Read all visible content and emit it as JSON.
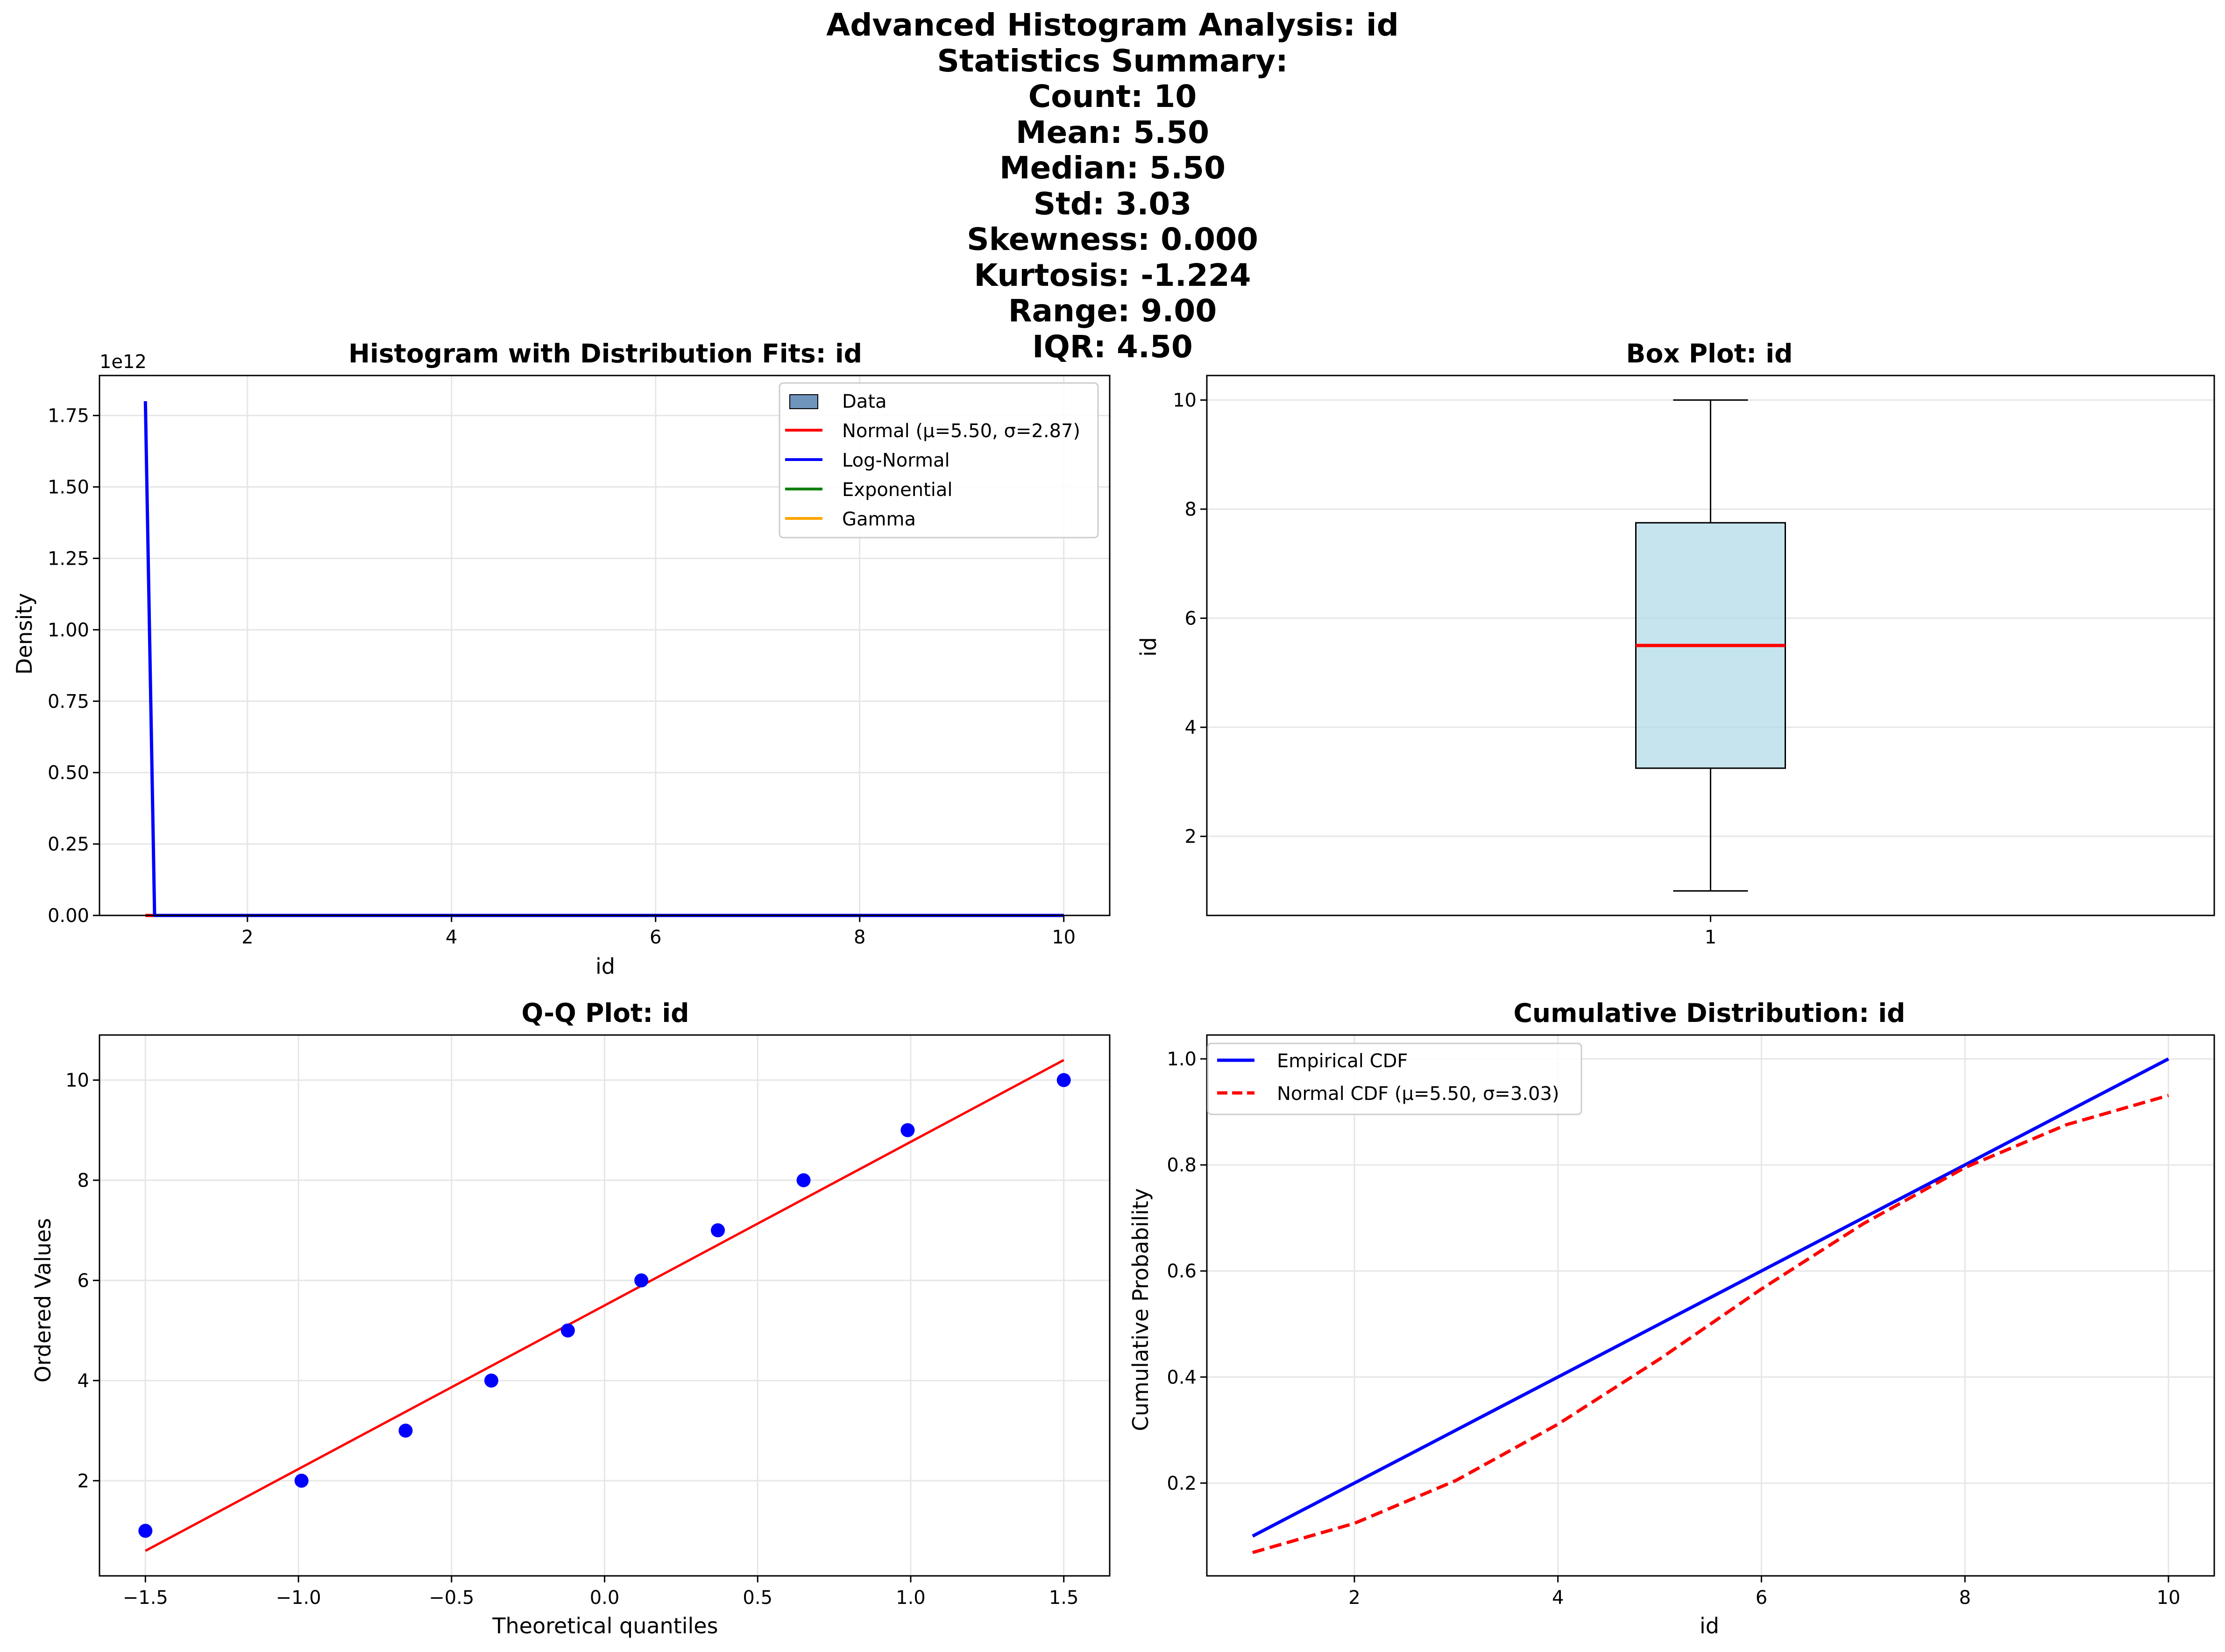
{
  "figure": {
    "suptitle_lines": [
      "Advanced Histogram Analysis: id",
      "Statistics Summary:",
      "Count: 10",
      "Mean: 5.50",
      "Median: 5.50",
      "Std: 3.03",
      "Skewness: 0.000",
      "Kurtosis: -1.224",
      "Range: 9.00",
      "IQR: 4.50"
    ]
  },
  "colors": {
    "grid": "#e6e6e6",
    "normal": "#ff0000",
    "lognormal": "#0000ff",
    "exponential": "#008000",
    "gamma": "#ffa500",
    "data": "#6f95bd",
    "box_fill": "#add8e6",
    "median": "#ff0000",
    "qq_point": "#0000ff",
    "qq_line": "#ff0000",
    "ecdf": "#0000ff",
    "ncdf": "#ff0000"
  },
  "chart_data": [
    {
      "type": "line",
      "title": "Histogram with Distribution Fits: id",
      "xlabel": "id",
      "ylabel": "Density",
      "offset_text": "1e12",
      "xlim": [
        0.55,
        10.45
      ],
      "ylim": [
        0,
        1.89
      ],
      "xticks": [
        2,
        4,
        6,
        8,
        10
      ],
      "yticks": [
        0.0,
        0.25,
        0.5,
        0.75,
        1.0,
        1.25,
        1.5,
        1.75
      ],
      "ytick_labels": [
        "0.00",
        "0.25",
        "0.50",
        "0.75",
        "1.00",
        "1.25",
        "1.50",
        "1.75"
      ],
      "grid": true,
      "legend_position": "top-right",
      "series": [
        {
          "name": "Data",
          "kind": "patch",
          "values": []
        },
        {
          "name": "Normal (μ=5.50, σ=2.87)",
          "key": "normal",
          "x": [
            1,
            10
          ],
          "y": [
            0,
            0
          ]
        },
        {
          "name": "Log-Normal",
          "key": "lognormal",
          "x": [
            1.0,
            1.09,
            10
          ],
          "y": [
            1.8,
            0.0,
            0.0
          ]
        },
        {
          "name": "Exponential",
          "key": "exponential",
          "x": [
            1,
            10
          ],
          "y": [
            0,
            0
          ]
        },
        {
          "name": "Gamma",
          "key": "gamma",
          "x": [
            1,
            10
          ],
          "y": [
            0,
            0
          ]
        }
      ]
    },
    {
      "type": "box",
      "title": "Box Plot: id",
      "ylabel": "id",
      "categories": [
        "1"
      ],
      "whisker_low": 1.0,
      "q1": 3.25,
      "median": 5.5,
      "q3": 7.75,
      "whisker_high": 10.0,
      "ylim": [
        0.55,
        10.45
      ],
      "yticks": [
        2,
        4,
        6,
        8,
        10
      ],
      "grid": true
    },
    {
      "type": "scatter",
      "title": "Q-Q Plot: id",
      "xlabel": "Theoretical quantiles",
      "ylabel": "Ordered Values",
      "xlim": [
        -1.65,
        1.65
      ],
      "ylim": [
        0.1,
        10.9
      ],
      "xticks": [
        -1.5,
        -1.0,
        -0.5,
        0.0,
        0.5,
        1.0,
        1.5
      ],
      "xtick_labels": [
        "−1.5",
        "−1.0",
        "−0.5",
        "0.0",
        "0.5",
        "1.0",
        "1.5"
      ],
      "yticks": [
        2,
        4,
        6,
        8,
        10
      ],
      "grid": true,
      "points": {
        "x": [
          -1.5,
          -0.99,
          -0.65,
          -0.37,
          -0.12,
          0.12,
          0.37,
          0.65,
          0.99,
          1.5
        ],
        "y": [
          1,
          2,
          3,
          4,
          5,
          6,
          7,
          8,
          9,
          10
        ]
      },
      "fit_line": {
        "x": [
          -1.5,
          1.5
        ],
        "y": [
          0.6,
          10.4
        ]
      }
    },
    {
      "type": "line",
      "title": "Cumulative Distribution: id",
      "xlabel": "id",
      "ylabel": "Cumulative Probability",
      "xlim": [
        0.55,
        10.45
      ],
      "ylim": [
        0.025,
        1.045
      ],
      "xticks": [
        2,
        4,
        6,
        8,
        10
      ],
      "yticks": [
        0.2,
        0.4,
        0.6,
        0.8,
        1.0
      ],
      "ytick_labels": [
        "0.2",
        "0.4",
        "0.6",
        "0.8",
        "1.0"
      ],
      "grid": true,
      "legend_position": "top-left",
      "series": [
        {
          "name": "Empirical CDF",
          "key": "ecdf",
          "x": [
            1,
            2,
            3,
            4,
            5,
            6,
            7,
            8,
            9,
            10
          ],
          "y": [
            0.1,
            0.2,
            0.3,
            0.4,
            0.5,
            0.6,
            0.7,
            0.8,
            0.9,
            1.0
          ]
        },
        {
          "name": "Normal CDF (μ=5.50, σ=3.03)",
          "key": "ncdf",
          "dashed": true,
          "x": [
            1,
            2,
            3,
            4,
            5,
            6,
            7,
            8,
            9,
            10
          ],
          "y": [
            0.069,
            0.124,
            0.205,
            0.311,
            0.434,
            0.566,
            0.689,
            0.795,
            0.876,
            0.931
          ]
        }
      ]
    }
  ]
}
